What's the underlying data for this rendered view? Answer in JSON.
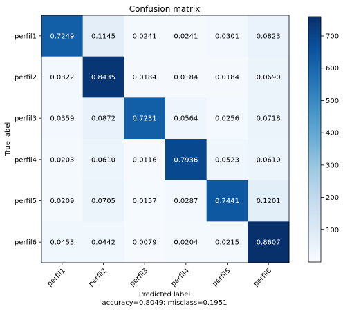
{
  "chart_data": {
    "type": "heatmap",
    "title": "Confusion matrix",
    "xlabel": "Predicted label",
    "ylabel": "True label",
    "footer": "accuracy=0.8049; misclass=0.1951",
    "x_categories": [
      "perfil1",
      "perfil2",
      "perfil3",
      "perfil4",
      "perfil5",
      "perfil6"
    ],
    "y_categories": [
      "perfil1",
      "perfil2",
      "perfil3",
      "perfil4",
      "perfil5",
      "perfil6"
    ],
    "values": [
      [
        0.7249,
        0.1145,
        0.0241,
        0.0241,
        0.0301,
        0.0823
      ],
      [
        0.0322,
        0.8435,
        0.0184,
        0.0184,
        0.0184,
        0.069
      ],
      [
        0.0359,
        0.0872,
        0.7231,
        0.0564,
        0.0256,
        0.0718
      ],
      [
        0.0203,
        0.061,
        0.0116,
        0.7936,
        0.0523,
        0.061
      ],
      [
        0.0209,
        0.0705,
        0.0157,
        0.0287,
        0.7441,
        0.1201
      ],
      [
        0.0453,
        0.0442,
        0.0079,
        0.0204,
        0.0215,
        0.8607
      ]
    ],
    "value_labels": [
      [
        "0.7249",
        "0.1145",
        "0.0241",
        "0.0241",
        "0.0301",
        "0.0823"
      ],
      [
        "0.0322",
        "0.8435",
        "0.0184",
        "0.0184",
        "0.0184",
        "0.0690"
      ],
      [
        "0.0359",
        "0.0872",
        "0.7231",
        "0.0564",
        "0.0256",
        "0.0718"
      ],
      [
        "0.0203",
        "0.0610",
        "0.0116",
        "0.7936",
        "0.0523",
        "0.0610"
      ],
      [
        "0.0209",
        "0.0705",
        "0.0157",
        "0.0287",
        "0.7441",
        "0.1201"
      ],
      [
        "0.0453",
        "0.0442",
        "0.0079",
        "0.0204",
        "0.0215",
        "0.8607"
      ]
    ],
    "colormap": "Blues",
    "colorbar": {
      "ticks": [
        100,
        200,
        300,
        400,
        500,
        600,
        700
      ],
      "tick_labels": [
        "100",
        "200",
        "300",
        "400",
        "500",
        "600",
        "700"
      ],
      "range": [
        0,
        760
      ]
    },
    "colors": {
      "light": "#f7fbff",
      "dark": "#08306b",
      "text_light": "#ffffff",
      "text_dark": "#000000"
    }
  }
}
